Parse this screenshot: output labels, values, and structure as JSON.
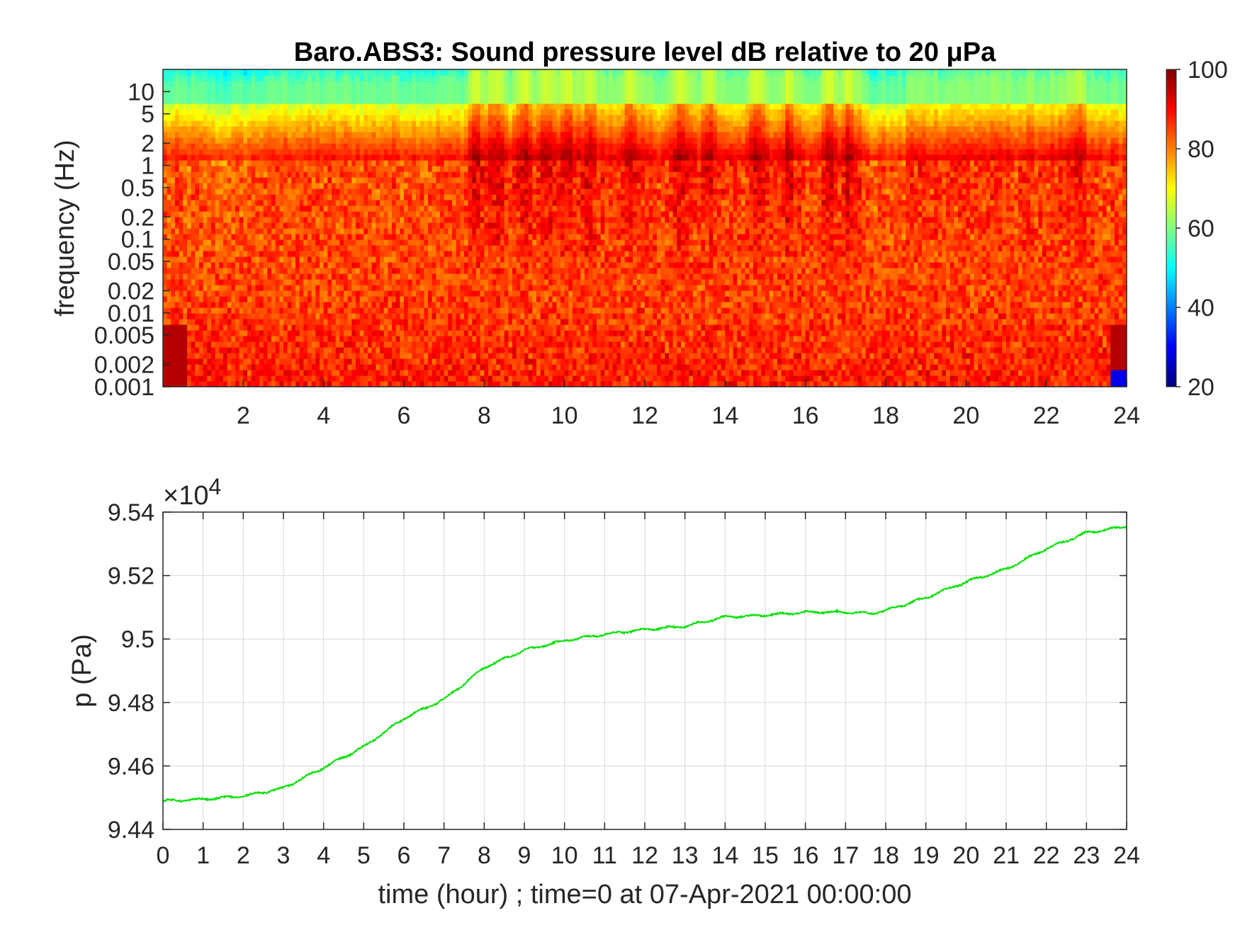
{
  "figure": {
    "background": "#ffffff"
  },
  "chart_data": [
    {
      "type": "heatmap",
      "title": "Baro.ABS3: Sound pressure level dB relative to 20 μPa",
      "ylabel": "frequency (Hz)",
      "xlabel": "",
      "x_range": [
        0,
        24
      ],
      "x_ticks": [
        2,
        4,
        6,
        8,
        10,
        12,
        14,
        16,
        18,
        20,
        22,
        24
      ],
      "x_tick_labels": [
        "2",
        "4",
        "6",
        "8",
        "10",
        "12",
        "14",
        "16",
        "18",
        "20",
        "22",
        "24"
      ],
      "y_scale": "log",
      "y_range": [
        0.001,
        20
      ],
      "y_ticks": [
        10,
        5,
        2,
        1,
        0.5,
        0.2,
        0.1,
        0.05,
        0.02,
        0.01,
        0.005,
        0.002,
        0.001
      ],
      "y_tick_labels": [
        "10",
        "5",
        "2",
        "1",
        "0.5",
        "0.2",
        "0.1",
        "0.05",
        "0.02",
        "0.01",
        "0.005",
        "0.002",
        "0.001"
      ],
      "colormap": "jet",
      "colorbar": {
        "range": [
          20,
          100
        ],
        "ticks": [
          100,
          80,
          60,
          40,
          20
        ],
        "tick_labels": [
          "100",
          "80",
          "60",
          "40",
          "20"
        ]
      },
      "high_frequency_burst_hours": [
        7.8,
        8.3,
        9.0,
        9.6,
        10.1,
        10.6,
        11.6,
        12.9,
        13.6,
        14.8,
        15.6,
        16.6,
        17.1,
        22.8
      ],
      "quiet_window_hours": [
        0,
        2.5,
        17.8
      ]
    },
    {
      "type": "line",
      "ylabel": "p (Pa)",
      "xlabel": "time (hour) ; time=0 at 07-Apr-2021 00:00:00",
      "x_range": [
        0,
        24
      ],
      "y_range": [
        94400,
        95400
      ],
      "y_multiplier": "×10",
      "y_multiplier_exponent": "4",
      "x_ticks": [
        0,
        1,
        2,
        3,
        4,
        5,
        6,
        7,
        8,
        9,
        10,
        11,
        12,
        13,
        14,
        15,
        16,
        17,
        18,
        19,
        20,
        21,
        22,
        23,
        24
      ],
      "x_tick_labels": [
        "0",
        "1",
        "2",
        "3",
        "4",
        "5",
        "6",
        "7",
        "8",
        "9",
        "10",
        "11",
        "12",
        "13",
        "14",
        "15",
        "16",
        "17",
        "18",
        "19",
        "20",
        "21",
        "22",
        "23",
        "24"
      ],
      "y_ticks": [
        94400,
        94600,
        94800,
        95000,
        95200,
        95400
      ],
      "y_tick_labels": [
        "9.44",
        "9.46",
        "9.48",
        "9.5",
        "9.52",
        "9.54"
      ],
      "grid": true,
      "series": [
        {
          "color": "#00e000",
          "x": [
            0,
            1,
            2,
            3,
            4,
            5,
            6,
            7,
            8,
            9,
            10,
            11,
            12,
            13,
            14,
            15,
            16,
            17,
            17.6,
            18,
            19,
            20,
            21,
            22,
            23,
            24
          ],
          "y": [
            94490,
            94495,
            94505,
            94530,
            94595,
            94660,
            94750,
            94810,
            94910,
            94965,
            94995,
            95015,
            95030,
            95040,
            95070,
            95075,
            95085,
            95085,
            95080,
            95090,
            95130,
            95180,
            95220,
            95285,
            95335,
            95355
          ]
        }
      ]
    }
  ]
}
